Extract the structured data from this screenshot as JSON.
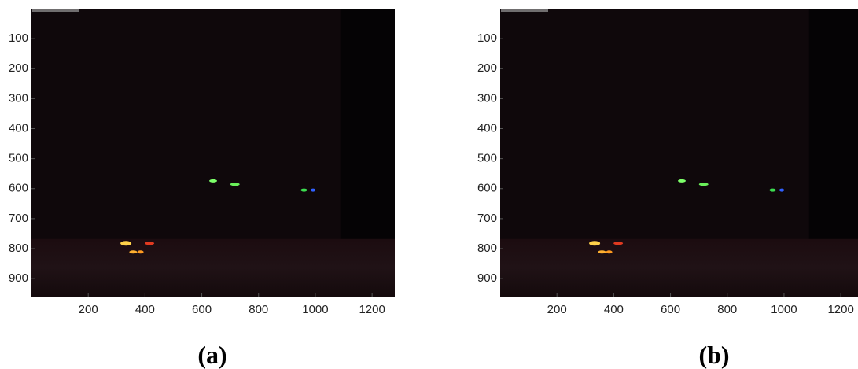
{
  "chart_data": [
    {
      "type": "image",
      "caption": "(a)",
      "xlim": [
        0,
        1280
      ],
      "ylim": [
        0,
        960
      ],
      "xticks": [
        200,
        400,
        600,
        800,
        1000,
        1200
      ],
      "yticks": [
        100,
        200,
        300,
        400,
        500,
        600,
        700,
        800,
        900
      ]
    },
    {
      "type": "image",
      "caption": "(b)",
      "xlim": [
        0,
        1280
      ],
      "ylim": [
        0,
        960
      ],
      "xticks": [
        200,
        400,
        600,
        800,
        1000,
        1200
      ],
      "yticks": [
        100,
        200,
        300,
        400,
        500,
        600,
        700,
        800,
        900
      ]
    }
  ]
}
